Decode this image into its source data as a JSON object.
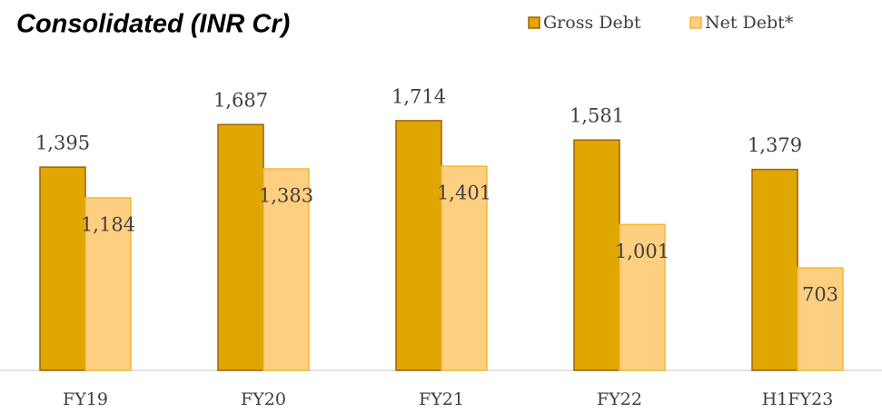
{
  "chart_data": {
    "type": "bar",
    "title": "Consolidated (INR Cr)",
    "categories": [
      "FY19",
      "FY20",
      "FY21",
      "FY22",
      "H1FY23"
    ],
    "series": [
      {
        "name": "Gross Debt",
        "color": "#dfa700",
        "values": [
          1395,
          1687,
          1714,
          1581,
          1379
        ],
        "value_labels": [
          "1,395",
          "1,687",
          "1,714",
          "1,581",
          "1,379"
        ]
      },
      {
        "name": "Net Debt*",
        "color": "#fecf80",
        "values": [
          1184,
          1383,
          1401,
          1001,
          703
        ],
        "value_labels": [
          "1,184",
          "1,383",
          "1,401",
          "1,001",
          "703"
        ]
      }
    ],
    "ylim": [
      0,
      2000
    ],
    "legend": "top-right"
  }
}
